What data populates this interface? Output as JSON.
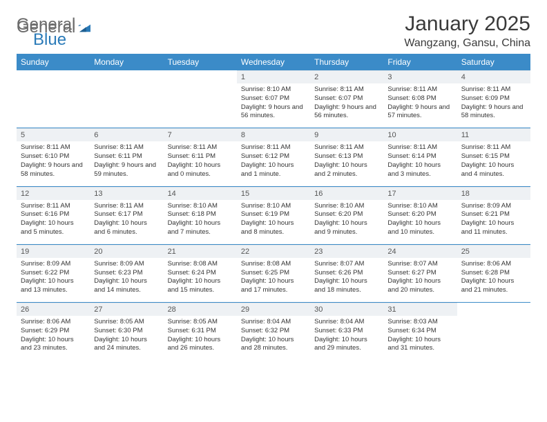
{
  "logo": {
    "textA": "General",
    "textB": "Blue"
  },
  "title": "January 2025",
  "location": "Wangzang, Gansu, China",
  "colors": {
    "header_bg": "#3b8bc8",
    "header_text": "#ffffff",
    "daynum_bg": "#eef1f4",
    "row_border": "#3b8bc8",
    "logo_gray": "#7a7a7a",
    "logo_blue": "#2a7ab8"
  },
  "dayHeaders": [
    "Sunday",
    "Monday",
    "Tuesday",
    "Wednesday",
    "Thursday",
    "Friday",
    "Saturday"
  ],
  "weeks": [
    [
      {
        "empty": true
      },
      {
        "empty": true
      },
      {
        "empty": true
      },
      {
        "num": "1",
        "sunrise": "8:10 AM",
        "sunset": "6:07 PM",
        "daylight": "9 hours and 56 minutes."
      },
      {
        "num": "2",
        "sunrise": "8:11 AM",
        "sunset": "6:07 PM",
        "daylight": "9 hours and 56 minutes."
      },
      {
        "num": "3",
        "sunrise": "8:11 AM",
        "sunset": "6:08 PM",
        "daylight": "9 hours and 57 minutes."
      },
      {
        "num": "4",
        "sunrise": "8:11 AM",
        "sunset": "6:09 PM",
        "daylight": "9 hours and 58 minutes."
      }
    ],
    [
      {
        "num": "5",
        "sunrise": "8:11 AM",
        "sunset": "6:10 PM",
        "daylight": "9 hours and 58 minutes."
      },
      {
        "num": "6",
        "sunrise": "8:11 AM",
        "sunset": "6:11 PM",
        "daylight": "9 hours and 59 minutes."
      },
      {
        "num": "7",
        "sunrise": "8:11 AM",
        "sunset": "6:11 PM",
        "daylight": "10 hours and 0 minutes."
      },
      {
        "num": "8",
        "sunrise": "8:11 AM",
        "sunset": "6:12 PM",
        "daylight": "10 hours and 1 minute."
      },
      {
        "num": "9",
        "sunrise": "8:11 AM",
        "sunset": "6:13 PM",
        "daylight": "10 hours and 2 minutes."
      },
      {
        "num": "10",
        "sunrise": "8:11 AM",
        "sunset": "6:14 PM",
        "daylight": "10 hours and 3 minutes."
      },
      {
        "num": "11",
        "sunrise": "8:11 AM",
        "sunset": "6:15 PM",
        "daylight": "10 hours and 4 minutes."
      }
    ],
    [
      {
        "num": "12",
        "sunrise": "8:11 AM",
        "sunset": "6:16 PM",
        "daylight": "10 hours and 5 minutes."
      },
      {
        "num": "13",
        "sunrise": "8:11 AM",
        "sunset": "6:17 PM",
        "daylight": "10 hours and 6 minutes."
      },
      {
        "num": "14",
        "sunrise": "8:10 AM",
        "sunset": "6:18 PM",
        "daylight": "10 hours and 7 minutes."
      },
      {
        "num": "15",
        "sunrise": "8:10 AM",
        "sunset": "6:19 PM",
        "daylight": "10 hours and 8 minutes."
      },
      {
        "num": "16",
        "sunrise": "8:10 AM",
        "sunset": "6:20 PM",
        "daylight": "10 hours and 9 minutes."
      },
      {
        "num": "17",
        "sunrise": "8:10 AM",
        "sunset": "6:20 PM",
        "daylight": "10 hours and 10 minutes."
      },
      {
        "num": "18",
        "sunrise": "8:09 AM",
        "sunset": "6:21 PM",
        "daylight": "10 hours and 11 minutes."
      }
    ],
    [
      {
        "num": "19",
        "sunrise": "8:09 AM",
        "sunset": "6:22 PM",
        "daylight": "10 hours and 13 minutes."
      },
      {
        "num": "20",
        "sunrise": "8:09 AM",
        "sunset": "6:23 PM",
        "daylight": "10 hours and 14 minutes."
      },
      {
        "num": "21",
        "sunrise": "8:08 AM",
        "sunset": "6:24 PM",
        "daylight": "10 hours and 15 minutes."
      },
      {
        "num": "22",
        "sunrise": "8:08 AM",
        "sunset": "6:25 PM",
        "daylight": "10 hours and 17 minutes."
      },
      {
        "num": "23",
        "sunrise": "8:07 AM",
        "sunset": "6:26 PM",
        "daylight": "10 hours and 18 minutes."
      },
      {
        "num": "24",
        "sunrise": "8:07 AM",
        "sunset": "6:27 PM",
        "daylight": "10 hours and 20 minutes."
      },
      {
        "num": "25",
        "sunrise": "8:06 AM",
        "sunset": "6:28 PM",
        "daylight": "10 hours and 21 minutes."
      }
    ],
    [
      {
        "num": "26",
        "sunrise": "8:06 AM",
        "sunset": "6:29 PM",
        "daylight": "10 hours and 23 minutes."
      },
      {
        "num": "27",
        "sunrise": "8:05 AM",
        "sunset": "6:30 PM",
        "daylight": "10 hours and 24 minutes."
      },
      {
        "num": "28",
        "sunrise": "8:05 AM",
        "sunset": "6:31 PM",
        "daylight": "10 hours and 26 minutes."
      },
      {
        "num": "29",
        "sunrise": "8:04 AM",
        "sunset": "6:32 PM",
        "daylight": "10 hours and 28 minutes."
      },
      {
        "num": "30",
        "sunrise": "8:04 AM",
        "sunset": "6:33 PM",
        "daylight": "10 hours and 29 minutes."
      },
      {
        "num": "31",
        "sunrise": "8:03 AM",
        "sunset": "6:34 PM",
        "daylight": "10 hours and 31 minutes."
      },
      {
        "empty": true
      }
    ]
  ],
  "labels": {
    "sunrise": "Sunrise: ",
    "sunset": "Sunset: ",
    "daylight": "Daylight: "
  }
}
